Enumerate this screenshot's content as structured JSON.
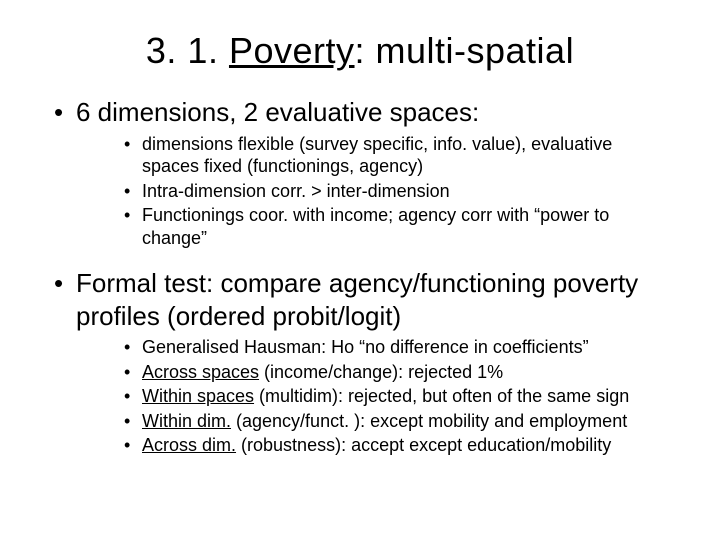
{
  "title_prefix": "3. 1. ",
  "title_underlined": "Poverty",
  "title_suffix": ": multi-spatial",
  "b1": {
    "text": "6 dimensions, 2 evaluative spaces:",
    "sub": [
      "dimensions flexible (survey specific, info. value), evaluative spaces fixed (functionings, agency)",
      "Intra-dimension corr. >  inter-dimension",
      "Functionings coor. with income; agency corr with “power to change”"
    ]
  },
  "b2": {
    "text": "Formal test: compare agency/functioning poverty profiles (ordered probit/logit)",
    "sub1_a": "Generalised Hausman: Ho “no difference in coefficients”",
    "sub2_u": "Across spaces",
    "sub2_b": " (income/change): rejected 1%",
    "sub3_u": "Within spaces",
    "sub3_b": " (multidim): rejected, but often of the same sign",
    "sub4_u": "Within dim.",
    "sub4_b": " (agency/funct. ): except mobility and employment",
    "sub5_u": "Across dim.",
    "sub5_b": " (robustness): accept except education/mobility"
  }
}
